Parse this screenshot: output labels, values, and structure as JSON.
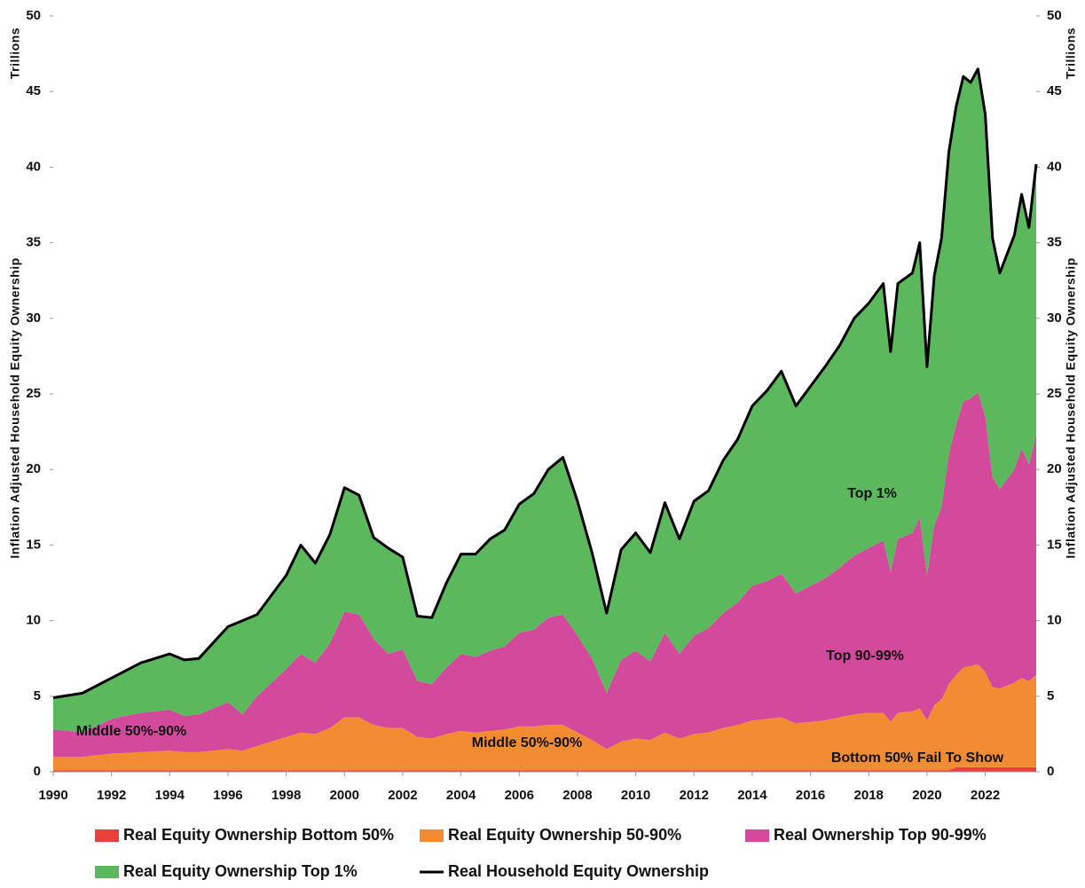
{
  "chart_data": {
    "type": "stacked_area",
    "y_label": "Inflation Adjusted Household Equity Ownership",
    "y_unit": "Trillions",
    "y2_label": "Inflation Adjusted Household Equity Ownership",
    "y2_unit": "Trillions",
    "annotations": [
      "Middle 50%-90%",
      "Middle 50%-90%",
      "Top 1%",
      "Top 90-99%",
      "Bottom 50% Fail To Show"
    ],
    "x": [
      1990,
      1991,
      1992,
      1993,
      1994,
      1994.5,
      1995,
      1996,
      1996.5,
      1997,
      1998,
      1998.5,
      1999,
      1999.5,
      2000,
      2000.5,
      2001,
      2001.5,
      2002,
      2002.5,
      2003,
      2003.5,
      2004,
      2004.5,
      2005,
      2005.5,
      2006,
      2006.5,
      2007,
      2007.5,
      2008,
      2008.5,
      2009,
      2009.5,
      2010,
      2010.5,
      2011,
      2011.5,
      2012,
      2012.5,
      2013,
      2013.5,
      2014,
      2014.5,
      2015,
      2015.5,
      2016,
      2016.5,
      2017,
      2017.5,
      2018,
      2018.5,
      2018.75,
      2019,
      2019.5,
      2019.75,
      2020,
      2020.25,
      2020.5,
      2020.75,
      2021,
      2021.25,
      2021.5,
      2021.75,
      2022,
      2022.25,
      2022.5,
      2023,
      2023.25,
      2023.5,
      2023.75
    ],
    "series": [
      {
        "name": "Real Equity Ownership Bottom 50%",
        "color": "#e8403a",
        "values": [
          0.1,
          0.1,
          0.1,
          0.1,
          0.1,
          0.1,
          0.1,
          0.1,
          0.1,
          0.1,
          0.1,
          0.1,
          0.1,
          0.1,
          0.1,
          0.1,
          0.1,
          0.1,
          0.1,
          0.1,
          0.1,
          0.1,
          0.1,
          0.1,
          0.1,
          0.1,
          0.1,
          0.1,
          0.1,
          0.1,
          0.1,
          0.1,
          0.1,
          0.1,
          0.1,
          0.1,
          0.1,
          0.1,
          0.1,
          0.1,
          0.1,
          0.1,
          0.1,
          0.1,
          0.1,
          0.1,
          0.1,
          0.1,
          0.1,
          0.1,
          0.1,
          0.1,
          0.1,
          0.1,
          0.1,
          0.1,
          0.1,
          0.1,
          0.1,
          0.1,
          0.3,
          0.3,
          0.3,
          0.3,
          0.3,
          0.3,
          0.3,
          0.3,
          0.3,
          0.3,
          0.3
        ]
      },
      {
        "name": "Real Equity Ownership 50-90%",
        "color": "#f28c33",
        "values": [
          0.9,
          0.9,
          1.1,
          1.2,
          1.3,
          1.2,
          1.2,
          1.4,
          1.3,
          1.6,
          2.2,
          2.5,
          2.4,
          2.8,
          3.5,
          3.5,
          3.0,
          2.8,
          2.8,
          2.2,
          2.1,
          2.4,
          2.6,
          2.5,
          2.6,
          2.7,
          2.9,
          2.9,
          3.0,
          3.0,
          2.5,
          2.0,
          1.4,
          1.9,
          2.1,
          2.0,
          2.5,
          2.1,
          2.4,
          2.5,
          2.8,
          3.0,
          3.3,
          3.4,
          3.5,
          3.1,
          3.2,
          3.3,
          3.5,
          3.7,
          3.8,
          3.8,
          3.2,
          3.8,
          3.9,
          4.1,
          3.3,
          4.3,
          4.7,
          5.7,
          6.1,
          6.6,
          6.7,
          6.8,
          6.3,
          5.3,
          5.2,
          5.6,
          5.9,
          5.7,
          6.1
        ]
      },
      {
        "name": "Real Ownership Top 90-99%",
        "color": "#d3499c",
        "values": [
          1.8,
          1.6,
          2.3,
          2.6,
          2.7,
          2.4,
          2.5,
          3.1,
          2.4,
          3.3,
          4.5,
          5.2,
          4.7,
          5.6,
          7.0,
          6.8,
          5.7,
          4.9,
          5.2,
          3.7,
          3.6,
          4.4,
          5.1,
          5.0,
          5.3,
          5.5,
          6.2,
          6.4,
          7.1,
          7.3,
          6.4,
          5.4,
          3.7,
          5.4,
          5.8,
          5.2,
          6.6,
          5.6,
          6.5,
          6.9,
          7.6,
          8.1,
          8.9,
          9.1,
          9.5,
          8.6,
          9.0,
          9.4,
          9.9,
          10.5,
          10.9,
          11.4,
          9.9,
          11.5,
          11.8,
          12.6,
          9.6,
          11.9,
          12.7,
          15.2,
          16.6,
          17.6,
          17.7,
          18.0,
          16.9,
          13.9,
          13.2,
          14.1,
          15.2,
          14.3,
          15.9
        ]
      },
      {
        "name": "Real Equity Ownership Top 1%",
        "color": "#5cb85c",
        "values": [
          2.1,
          2.6,
          2.7,
          3.3,
          3.7,
          3.7,
          3.7,
          5.0,
          6.2,
          5.4,
          6.2,
          7.2,
          6.6,
          7.2,
          8.2,
          7.9,
          6.7,
          7.0,
          6.1,
          4.3,
          4.4,
          5.6,
          6.6,
          6.8,
          7.4,
          7.7,
          8.5,
          9.0,
          9.8,
          10.4,
          8.9,
          7.0,
          5.3,
          7.3,
          7.8,
          7.2,
          8.6,
          7.6,
          8.9,
          9.1,
          10.1,
          10.8,
          11.9,
          12.6,
          13.4,
          12.4,
          13.2,
          14.0,
          14.7,
          15.7,
          16.2,
          17.0,
          14.6,
          16.9,
          17.2,
          18.2,
          13.8,
          16.5,
          17.8,
          20.0,
          21.0,
          21.5,
          20.9,
          21.4,
          20.0,
          15.8,
          14.3,
          15.5,
          16.8,
          15.7,
          17.9
        ]
      }
    ],
    "line": {
      "name": "Real Household Equity Ownership",
      "color": "#000000",
      "values": [
        4.9,
        5.2,
        6.2,
        7.2,
        7.8,
        7.4,
        7.5,
        9.6,
        10.0,
        10.4,
        13.0,
        15.0,
        13.8,
        15.7,
        18.8,
        18.3,
        15.5,
        14.8,
        14.2,
        10.3,
        10.2,
        12.5,
        14.4,
        14.4,
        15.4,
        16.0,
        17.7,
        18.4,
        20.0,
        20.8,
        17.9,
        14.5,
        10.5,
        14.7,
        15.8,
        14.5,
        17.8,
        15.4,
        17.9,
        18.6,
        20.6,
        22.0,
        24.2,
        25.2,
        26.5,
        24.2,
        25.5,
        26.8,
        28.2,
        30.0,
        31.0,
        32.3,
        27.8,
        32.3,
        33.0,
        35.0,
        26.8,
        32.8,
        35.3,
        41.0,
        44.0,
        46.0,
        45.6,
        46.5,
        43.5,
        35.3,
        33.0,
        35.5,
        38.2,
        36.0,
        40.2
      ]
    },
    "xlim": [
      1990,
      2023.75
    ],
    "xticks": [
      1990,
      1992,
      1994,
      1996,
      1998,
      2000,
      2002,
      2004,
      2006,
      2008,
      2010,
      2012,
      2014,
      2016,
      2018,
      2020,
      2022
    ],
    "ylim": [
      0,
      50
    ],
    "yticks": [
      0,
      5,
      10,
      15,
      20,
      25,
      30,
      35,
      40,
      45,
      50
    ],
    "y2lim": [
      0,
      50
    ],
    "y2ticks": [
      0,
      5,
      10,
      15,
      20,
      25,
      30,
      35,
      40,
      45,
      50
    ],
    "legend": "bottom"
  }
}
